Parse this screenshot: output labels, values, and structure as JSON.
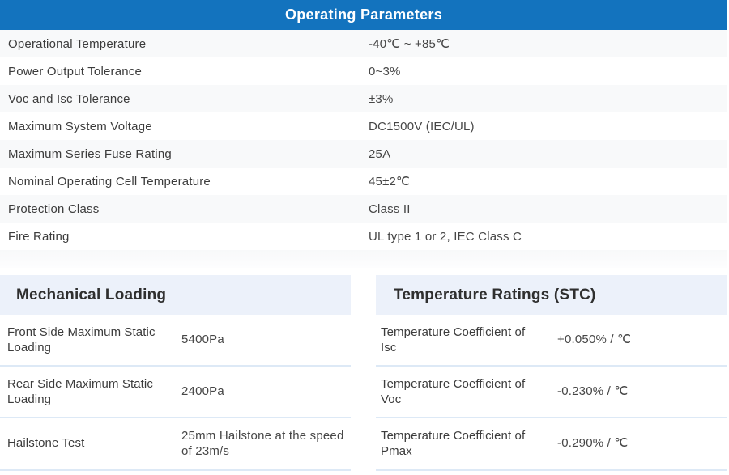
{
  "colors": {
    "header_blue": "#1373be",
    "header_text": "#ffffff",
    "row_stripe": "#f8f9fa",
    "section_band": "#ecf1fa",
    "separator": "#dde9f6",
    "label_text": "#3c3c3c",
    "value_text": "#464646"
  },
  "operating_parameters": {
    "title": "Operating Parameters",
    "rows": [
      {
        "label": "Operational Temperature",
        "value": "-40℃ ~ +85℃"
      },
      {
        "label": "Power Output Tolerance",
        "value": "0~3%"
      },
      {
        "label": "Voc and Isc Tolerance",
        "value": "±3%"
      },
      {
        "label": "Maximum System Voltage",
        "value": "DC1500V (IEC/UL)"
      },
      {
        "label": "Maximum Series Fuse Rating",
        "value": "25A"
      },
      {
        "label": "Nominal Operating Cell Temperature",
        "value": "45±2℃"
      },
      {
        "label": "Protection Class",
        "value": "Class II"
      },
      {
        "label": "Fire Rating",
        "value": "UL type 1 or 2, IEC Class C"
      }
    ]
  },
  "mechanical_loading": {
    "title": "Mechanical Loading",
    "rows": [
      {
        "label": "Front Side Maximum Static Loading",
        "value": "5400Pa"
      },
      {
        "label": "Rear Side Maximum Static Loading",
        "value": "2400Pa"
      },
      {
        "label": "Hailstone Test",
        "value": "25mm Hailstone at the speed of 23m/s"
      }
    ]
  },
  "temperature_ratings": {
    "title": "Temperature Ratings (STC)",
    "rows": [
      {
        "label": "Temperature Coefficient of Isc",
        "value": "+0.050% / ℃"
      },
      {
        "label": "Temperature Coefficient of Voc",
        "value": "-0.230% / ℃"
      },
      {
        "label": "Temperature Coefficient of Pmax",
        "value": "-0.290% / ℃"
      }
    ]
  }
}
